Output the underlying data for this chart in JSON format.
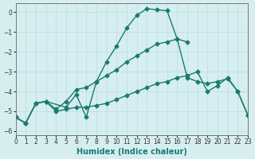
{
  "xlabel": "Humidex (Indice chaleur)",
  "bg_color": "#d6eef0",
  "grid_color": "#b8dde0",
  "line_color": "#1a7a6e",
  "xlim": [
    0,
    23
  ],
  "ylim": [
    -6.2,
    0.45
  ],
  "yticks": [
    0,
    -1,
    -2,
    -3,
    -4,
    -5,
    -6
  ],
  "xticks": [
    0,
    1,
    2,
    3,
    4,
    5,
    6,
    7,
    8,
    9,
    10,
    11,
    12,
    13,
    14,
    15,
    16,
    17,
    18,
    19,
    20,
    21,
    22,
    23
  ],
  "line1_x": [
    0,
    1,
    2,
    3,
    5,
    6,
    7,
    8,
    9,
    10,
    11,
    12,
    13,
    14,
    15,
    16,
    17
  ],
  "line1_y": [
    -5.3,
    -5.6,
    -4.6,
    -4.5,
    -4.8,
    -4.15,
    -5.3,
    -3.5,
    -2.5,
    -1.7,
    -0.8,
    -0.15,
    0.18,
    0.12,
    0.08,
    -1.35,
    -1.5
  ],
  "line2_x": [
    0,
    1,
    2,
    3,
    4,
    5,
    6,
    7,
    8,
    9,
    10,
    11,
    12,
    13,
    14,
    15,
    16,
    17,
    18,
    19,
    20,
    21,
    22,
    23
  ],
  "line2_y": [
    -5.3,
    -5.6,
    -4.6,
    -4.5,
    -4.9,
    -4.5,
    -3.9,
    -3.8,
    -3.5,
    -3.2,
    -2.9,
    -2.5,
    -2.2,
    -1.9,
    -1.6,
    -1.5,
    -1.35,
    -3.3,
    -3.5,
    -3.6,
    -3.5,
    -3.35,
    -4.0,
    -5.2
  ],
  "line3_x": [
    0,
    1,
    2,
    3,
    4,
    5,
    6,
    7,
    8,
    9,
    10,
    11,
    12,
    13,
    14,
    15,
    16,
    17,
    18,
    19,
    20,
    21,
    22,
    23
  ],
  "line3_y": [
    -5.3,
    -5.6,
    -4.6,
    -4.5,
    -5.0,
    -4.9,
    -4.8,
    -4.8,
    -4.7,
    -4.6,
    -4.4,
    -4.2,
    -4.0,
    -3.8,
    -3.6,
    -3.5,
    -3.3,
    -3.2,
    -3.0,
    -4.0,
    -3.7,
    -3.3,
    -4.0,
    -5.2
  ]
}
